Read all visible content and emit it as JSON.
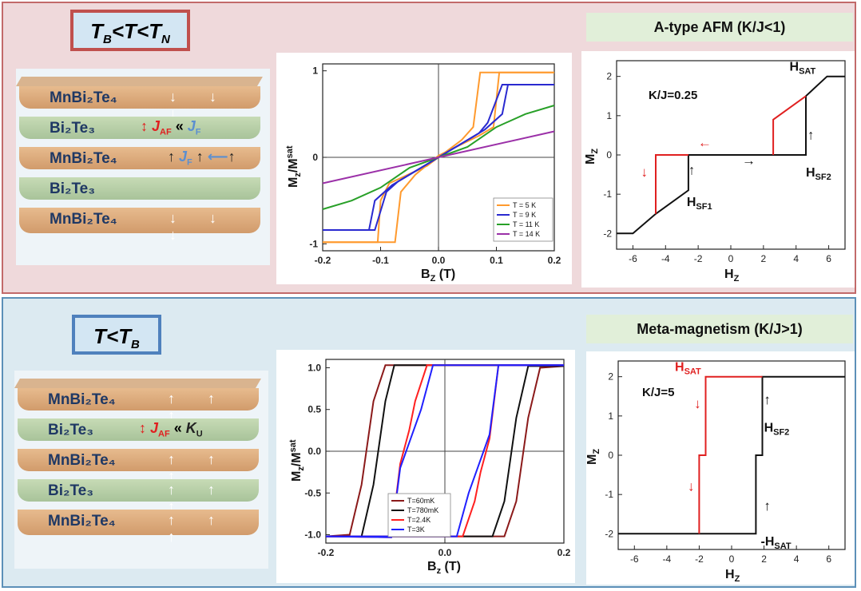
{
  "top": {
    "regime_label": "T<sub>B</sub>&lt;T&lt;T<sub>N</sub>",
    "title": "A-type AFM (K/J<1)",
    "stack": {
      "layers": [
        "MnBi₂Te₄",
        "Bi₂Te₃",
        "MnBi₂Te₄",
        "Bi₂Te₃",
        "MnBi₂Te₄"
      ],
      "arrows": [
        "↓ ↓ ↓",
        "",
        "↑ ↑",
        "",
        "↓ ↓ ↓"
      ],
      "coupling_1": "J",
      "coupling_1_sub": "AF",
      "coupling_ll": "«",
      "coupling_2": "J",
      "coupling_2_sub": "F",
      "layer3_j": "J",
      "layer3_j_sub": "F"
    },
    "chart_mt": {
      "type": "line",
      "xlabel": "B",
      "xlabel_sub": "Z",
      "xunit": " (T)",
      "ylabel": "M",
      "ylabel_sub": "z",
      "ylabel_div": "/M",
      "ylabel_sup": "sat",
      "xticks": [
        "-0.2",
        "-0.1",
        "0.0",
        "0.1",
        "0.2"
      ],
      "yticks": [
        "1",
        "0",
        "-1"
      ],
      "legend": [
        "T = 5 K",
        "T = 9 K",
        "T = 11 K",
        "T = 14 K"
      ],
      "colors": [
        "#ff9a2e",
        "#2a2ad0",
        "#28a028",
        "#9b30a8"
      ]
    },
    "chart_model": {
      "label_kj": "K/J=0.25",
      "ylabel": "M",
      "ylabel_sub": "Z",
      "xlabel": "H",
      "xlabel_sub": "Z",
      "xticks": [
        "-6",
        "-4",
        "-2",
        "0",
        "2",
        "4",
        "6"
      ],
      "yticks": [
        "2",
        "1",
        "0",
        "-1",
        "-2"
      ],
      "h_sat": "H",
      "h_sat_sub": "SAT",
      "h_sf1": "H",
      "h_sf1_sub": "SF1",
      "h_sf2": "H",
      "h_sf2_sub": "SF2"
    }
  },
  "bottom": {
    "regime_label": "T&lt;T<sub>B</sub>",
    "title": "Meta-magnetism (K/J>1)",
    "stack": {
      "layers": [
        "MnBi₂Te₄",
        "Bi₂Te₃",
        "MnBi₂Te₄",
        "Bi₂Te₃",
        "MnBi₂Te₄"
      ],
      "arrows": [
        "↑ ↑ ↑",
        "",
        "↑ ↑ ↑",
        "",
        "↑ ↑ ↑"
      ],
      "coupling_1": "J",
      "coupling_1_sub": "AF",
      "coupling_ll": "«",
      "coupling_2": "K",
      "coupling_2_sub": "U"
    },
    "chart_mt": {
      "type": "line",
      "xlabel": "B",
      "xlabel_sub": "z",
      "xunit": " (T)",
      "ylabel": "M",
      "ylabel_sub": "z",
      "ylabel_div": "/M",
      "ylabel_sup": "sat",
      "xticks": [
        "-0.2",
        "0.0",
        "0.2"
      ],
      "yticks": [
        "1.0",
        "0.5",
        "0.0",
        "-0.5",
        "-1.0"
      ],
      "legend": [
        "T=60mK",
        "T=780mK",
        "T=2.4K",
        "T=3K"
      ],
      "colors": [
        "#8b1a1a",
        "#111111",
        "#ff2020",
        "#2020ff"
      ]
    },
    "chart_model": {
      "label_kj": "K/J=5",
      "ylabel": "M",
      "ylabel_sub": "Z",
      "xlabel": "H",
      "xlabel_sub": "Z",
      "xticks": [
        "-6",
        "-4",
        "-2",
        "0",
        "2",
        "4",
        "6"
      ],
      "yticks": [
        "2",
        "1",
        "0",
        "-1",
        "-2"
      ],
      "h_sat": "H",
      "h_sat_sub": "SAT",
      "h_sf2": "H",
      "h_sf2_sub": "SF2",
      "neg_h_sat": "-H",
      "neg_h_sat_sub": "SAT"
    }
  }
}
